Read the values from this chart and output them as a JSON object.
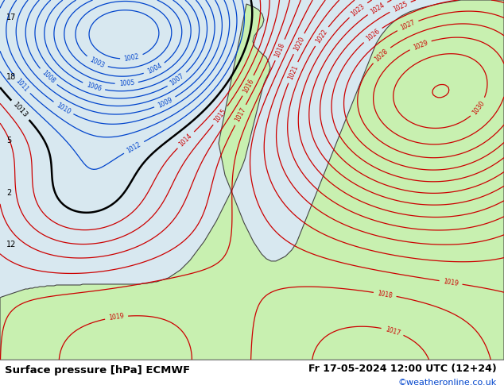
{
  "title_left": "Surface pressure [hPa] ECMWF",
  "title_right": "Fr 17-05-2024 12:00 UTC (12+24)",
  "watermark": "©weatheronline.co.uk",
  "sea_color": "#d8e8f0",
  "land_color": "#c8f0b0",
  "land_edge": "#444444",
  "text_black": "#000000",
  "text_blue": "#0044cc",
  "text_red": "#cc0000",
  "contour_blue": "#0044cc",
  "contour_red": "#cc0000",
  "contour_black": "#000000",
  "footer_bg": "#ffffff",
  "figsize": [
    6.34,
    4.9
  ],
  "dpi": 100
}
